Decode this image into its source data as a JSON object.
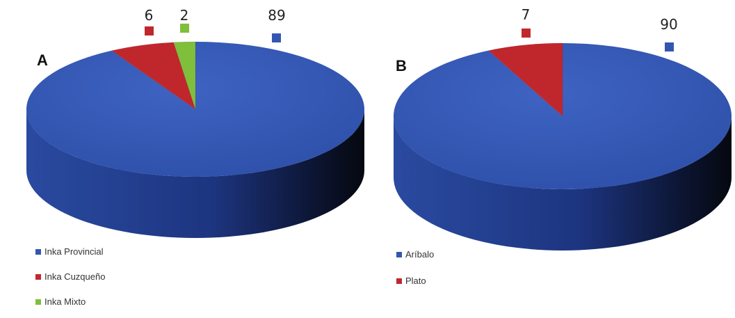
{
  "chart_data": [
    {
      "type": "pie",
      "panel": "A",
      "title": "",
      "labels": [
        "Inka Provincial",
        "Inka Cuzqueño",
        "Inka Mixto"
      ],
      "values": [
        89,
        6,
        2
      ],
      "colors": [
        "#3356b0",
        "#c0272d",
        "#7fbf3c"
      ],
      "data_labels": [
        "89",
        "6",
        "2"
      ],
      "legend_position": "bottom-left",
      "style": "3d"
    },
    {
      "type": "pie",
      "panel": "B",
      "title": "",
      "labels": [
        "Aríbalo",
        "Plato"
      ],
      "values": [
        90,
        7
      ],
      "colors": [
        "#3356b0",
        "#c0272d"
      ],
      "data_labels": [
        "90",
        "7"
      ],
      "legend_position": "bottom-left",
      "style": "3d"
    }
  ]
}
